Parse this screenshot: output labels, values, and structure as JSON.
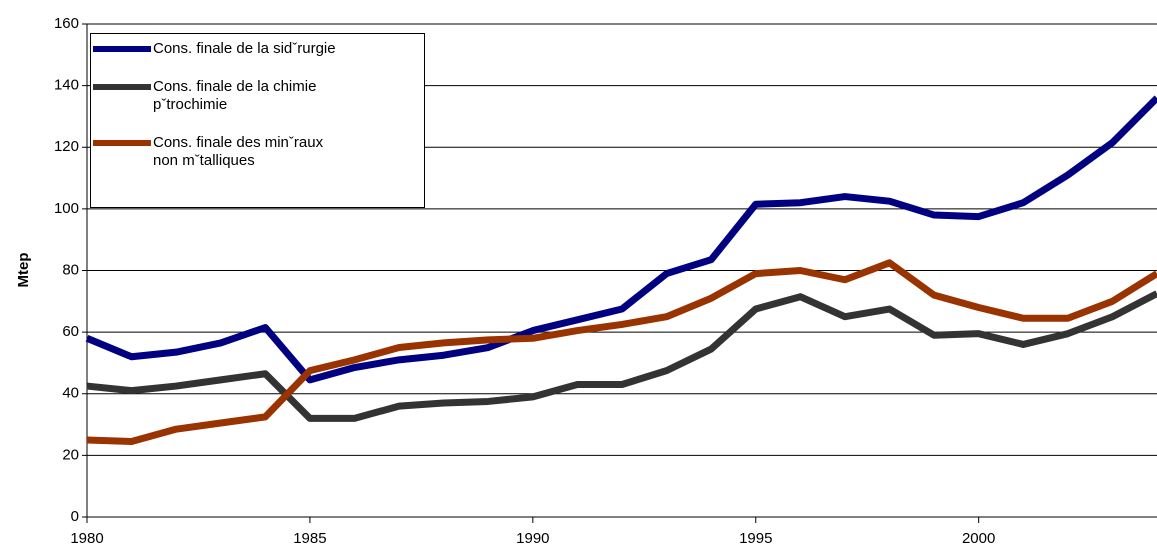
{
  "chart_data": {
    "type": "line",
    "y_label": "Mtep",
    "x": [
      1980,
      1981,
      1982,
      1983,
      1984,
      1985,
      1986,
      1987,
      1988,
      1989,
      1990,
      1991,
      1992,
      1993,
      1994,
      1995,
      1996,
      1997,
      1998,
      1999,
      2000,
      2001,
      2002,
      2003,
      2004
    ],
    "series": [
      {
        "name": "Cons. finale de la sidˇrurgie",
        "color": "#000080",
        "values": [
          58,
          52,
          53.5,
          56.5,
          61.5,
          44.5,
          48.5,
          51,
          52.5,
          55,
          60.5,
          64,
          67.5,
          79,
          83.5,
          101.5,
          102,
          104,
          102.5,
          98,
          97.5,
          102,
          111,
          121.5,
          136
        ]
      },
      {
        "name": "Cons. finale de la chimie pˇtrochimie",
        "color": "#333333",
        "values": [
          42.5,
          41,
          42.5,
          44.5,
          46.5,
          32,
          32,
          36,
          37,
          37.5,
          39,
          43,
          43,
          47.5,
          54.5,
          67.5,
          71.5,
          65,
          67.5,
          59,
          59.5,
          56,
          59.5,
          65,
          72.5
        ]
      },
      {
        "name": "Cons. finale des minˇraux non mˇtalliques",
        "color": "#993300",
        "values": [
          25,
          24.5,
          28.5,
          30.5,
          32.5,
          47.5,
          51,
          55,
          56.5,
          57.5,
          58,
          60.5,
          62.5,
          65,
          71,
          79,
          80,
          77,
          82.5,
          72,
          68,
          64.5,
          64.5,
          70,
          79
        ]
      }
    ],
    "xlim": [
      1980,
      2004
    ],
    "xticks": [
      1980,
      1985,
      1990,
      1995,
      2000
    ],
    "ylim": [
      0,
      160
    ],
    "yticks": [
      0,
      20,
      40,
      60,
      80,
      100,
      120,
      140,
      160
    ],
    "grid": true,
    "legend": "top-left"
  }
}
